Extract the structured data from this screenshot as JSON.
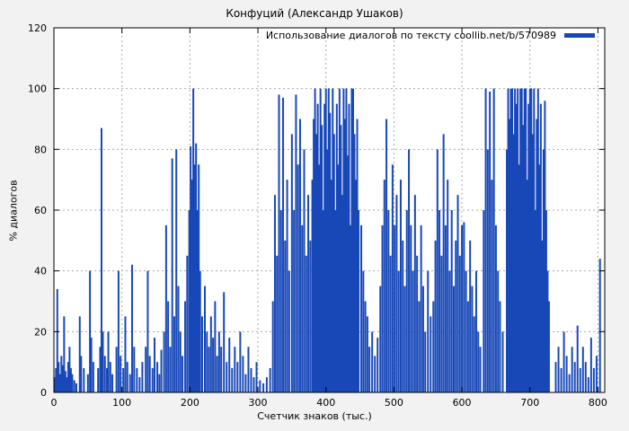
{
  "figure": {
    "title": "Конфуций (Александр Ушаков)",
    "legend_label": "Использование диалогов по тексту coollib.net/b/570989",
    "xlabel": "Счетчик знаков (тыс.)",
    "ylabel": "% диалогов",
    "colors": {
      "series": "#1848b8",
      "background": "#f2f2f2",
      "plot_background": "#ffffff",
      "grid": "#aaaaaa",
      "border": "#000000"
    }
  },
  "chart_data": {
    "type": "bar",
    "style": "impulses",
    "title": "Конфуций (Александр Ушаков)",
    "xlabel": "Счетчик знаков (тыс.)",
    "ylabel": "% диалогов",
    "xlim": [
      0,
      810
    ],
    "ylim": [
      0,
      120
    ],
    "x_ticks": [
      0,
      100,
      200,
      300,
      400,
      500,
      600,
      700,
      800
    ],
    "y_ticks": [
      0,
      20,
      40,
      60,
      80,
      100,
      120
    ],
    "grid": true,
    "legend": {
      "label": "Использование диалогов по тексту coollib.net/b/570989",
      "position": "top-right"
    },
    "points": [
      [
        1,
        5
      ],
      [
        3,
        8
      ],
      [
        5,
        34
      ],
      [
        7,
        10
      ],
      [
        9,
        6
      ],
      [
        11,
        12
      ],
      [
        13,
        9
      ],
      [
        15,
        25
      ],
      [
        17,
        7
      ],
      [
        19,
        5
      ],
      [
        21,
        10
      ],
      [
        23,
        15
      ],
      [
        25,
        8
      ],
      [
        27,
        6
      ],
      [
        30,
        4
      ],
      [
        33,
        3
      ],
      [
        38,
        25
      ],
      [
        40,
        12
      ],
      [
        44,
        8
      ],
      [
        50,
        6
      ],
      [
        53,
        40
      ],
      [
        55,
        18
      ],
      [
        58,
        10
      ],
      [
        65,
        8
      ],
      [
        68,
        15
      ],
      [
        70,
        87
      ],
      [
        72,
        20
      ],
      [
        75,
        12
      ],
      [
        78,
        8
      ],
      [
        80,
        20
      ],
      [
        83,
        10
      ],
      [
        86,
        6
      ],
      [
        92,
        15
      ],
      [
        95,
        40
      ],
      [
        98,
        12
      ],
      [
        102,
        8
      ],
      [
        105,
        25
      ],
      [
        108,
        10
      ],
      [
        112,
        6
      ],
      [
        115,
        42
      ],
      [
        118,
        15
      ],
      [
        122,
        8
      ],
      [
        126,
        5
      ],
      [
        130,
        10
      ],
      [
        135,
        15
      ],
      [
        138,
        40
      ],
      [
        141,
        12
      ],
      [
        145,
        8
      ],
      [
        148,
        18
      ],
      [
        152,
        10
      ],
      [
        155,
        6
      ],
      [
        158,
        14
      ],
      [
        162,
        20
      ],
      [
        165,
        55
      ],
      [
        168,
        30
      ],
      [
        171,
        15
      ],
      [
        174,
        77
      ],
      [
        177,
        25
      ],
      [
        180,
        80
      ],
      [
        183,
        35
      ],
      [
        186,
        20
      ],
      [
        189,
        12
      ],
      [
        193,
        30
      ],
      [
        196,
        45
      ],
      [
        199,
        60
      ],
      [
        201,
        81
      ],
      [
        203,
        70
      ],
      [
        205,
        100
      ],
      [
        207,
        75
      ],
      [
        209,
        82
      ],
      [
        211,
        60
      ],
      [
        213,
        75
      ],
      [
        215,
        40
      ],
      [
        218,
        25
      ],
      [
        222,
        35
      ],
      [
        225,
        20
      ],
      [
        228,
        15
      ],
      [
        231,
        25
      ],
      [
        234,
        18
      ],
      [
        237,
        30
      ],
      [
        240,
        12
      ],
      [
        243,
        20
      ],
      [
        246,
        15
      ],
      [
        250,
        33
      ],
      [
        254,
        10
      ],
      [
        258,
        18
      ],
      [
        262,
        8
      ],
      [
        266,
        15
      ],
      [
        270,
        10
      ],
      [
        274,
        20
      ],
      [
        278,
        12
      ],
      [
        282,
        6
      ],
      [
        286,
        15
      ],
      [
        290,
        8
      ],
      [
        294,
        5
      ],
      [
        298,
        10
      ],
      [
        303,
        4
      ],
      [
        308,
        3
      ],
      [
        313,
        5
      ],
      [
        318,
        8
      ],
      [
        322,
        30
      ],
      [
        325,
        65
      ],
      [
        328,
        45
      ],
      [
        331,
        98
      ],
      [
        334,
        60
      ],
      [
        337,
        97
      ],
      [
        340,
        50
      ],
      [
        343,
        70
      ],
      [
        346,
        40
      ],
      [
        350,
        85
      ],
      [
        353,
        60
      ],
      [
        356,
        98
      ],
      [
        359,
        75
      ],
      [
        362,
        90
      ],
      [
        365,
        55
      ],
      [
        368,
        80
      ],
      [
        371,
        45
      ],
      [
        374,
        65
      ],
      [
        377,
        50
      ],
      [
        380,
        70
      ],
      [
        382,
        90
      ],
      [
        384,
        100
      ],
      [
        386,
        85
      ],
      [
        388,
        95
      ],
      [
        390,
        75
      ],
      [
        392,
        100
      ],
      [
        394,
        88
      ],
      [
        396,
        60
      ],
      [
        398,
        95
      ],
      [
        400,
        100
      ],
      [
        402,
        80
      ],
      [
        404,
        100
      ],
      [
        406,
        92
      ],
      [
        408,
        70
      ],
      [
        410,
        100
      ],
      [
        412,
        85
      ],
      [
        414,
        60
      ],
      [
        416,
        95
      ],
      [
        418,
        75
      ],
      [
        420,
        100
      ],
      [
        422,
        88
      ],
      [
        424,
        65
      ],
      [
        426,
        100
      ],
      [
        428,
        90
      ],
      [
        430,
        100
      ],
      [
        432,
        78
      ],
      [
        434,
        95
      ],
      [
        436,
        55
      ],
      [
        438,
        100
      ],
      [
        440,
        100
      ],
      [
        442,
        85
      ],
      [
        444,
        70
      ],
      [
        446,
        90
      ],
      [
        448,
        60
      ],
      [
        452,
        55
      ],
      [
        455,
        40
      ],
      [
        458,
        30
      ],
      [
        461,
        25
      ],
      [
        464,
        15
      ],
      [
        468,
        20
      ],
      [
        472,
        12
      ],
      [
        476,
        18
      ],
      [
        480,
        35
      ],
      [
        483,
        55
      ],
      [
        486,
        70
      ],
      [
        489,
        90
      ],
      [
        492,
        60
      ],
      [
        495,
        45
      ],
      [
        498,
        75
      ],
      [
        501,
        55
      ],
      [
        504,
        65
      ],
      [
        507,
        40
      ],
      [
        510,
        70
      ],
      [
        513,
        50
      ],
      [
        516,
        35
      ],
      [
        519,
        60
      ],
      [
        522,
        80
      ],
      [
        525,
        55
      ],
      [
        528,
        40
      ],
      [
        531,
        65
      ],
      [
        534,
        45
      ],
      [
        537,
        30
      ],
      [
        540,
        55
      ],
      [
        543,
        35
      ],
      [
        546,
        20
      ],
      [
        550,
        40
      ],
      [
        554,
        25
      ],
      [
        558,
        30
      ],
      [
        561,
        50
      ],
      [
        564,
        80
      ],
      [
        567,
        60
      ],
      [
        570,
        45
      ],
      [
        573,
        85
      ],
      [
        576,
        55
      ],
      [
        579,
        70
      ],
      [
        582,
        40
      ],
      [
        585,
        60
      ],
      [
        588,
        35
      ],
      [
        591,
        50
      ],
      [
        594,
        65
      ],
      [
        597,
        45
      ],
      [
        600,
        55
      ],
      [
        603,
        56
      ],
      [
        606,
        40
      ],
      [
        609,
        30
      ],
      [
        612,
        50
      ],
      [
        615,
        35
      ],
      [
        618,
        25
      ],
      [
        621,
        40
      ],
      [
        624,
        20
      ],
      [
        627,
        15
      ],
      [
        632,
        60
      ],
      [
        635,
        100
      ],
      [
        638,
        80
      ],
      [
        641,
        99
      ],
      [
        644,
        70
      ],
      [
        647,
        100
      ],
      [
        650,
        55
      ],
      [
        653,
        40
      ],
      [
        656,
        30
      ],
      [
        660,
        20
      ],
      [
        666,
        80
      ],
      [
        668,
        100
      ],
      [
        670,
        90
      ],
      [
        672,
        100
      ],
      [
        674,
        100
      ],
      [
        676,
        85
      ],
      [
        678,
        100
      ],
      [
        680,
        95
      ],
      [
        682,
        100
      ],
      [
        684,
        75
      ],
      [
        686,
        100
      ],
      [
        688,
        100
      ],
      [
        690,
        88
      ],
      [
        692,
        100
      ],
      [
        694,
        100
      ],
      [
        696,
        70
      ],
      [
        698,
        95
      ],
      [
        700,
        100
      ],
      [
        702,
        100
      ],
      [
        704,
        85
      ],
      [
        706,
        100
      ],
      [
        708,
        60
      ],
      [
        710,
        90
      ],
      [
        712,
        100
      ],
      [
        714,
        75
      ],
      [
        716,
        95
      ],
      [
        718,
        50
      ],
      [
        720,
        80
      ],
      [
        722,
        96
      ],
      [
        724,
        60
      ],
      [
        726,
        40
      ],
      [
        728,
        30
      ],
      [
        738,
        10
      ],
      [
        742,
        15
      ],
      [
        746,
        8
      ],
      [
        750,
        20
      ],
      [
        754,
        12
      ],
      [
        758,
        6
      ],
      [
        762,
        15
      ],
      [
        766,
        10
      ],
      [
        770,
        22
      ],
      [
        774,
        8
      ],
      [
        778,
        15
      ],
      [
        782,
        10
      ],
      [
        786,
        5
      ],
      [
        790,
        18
      ],
      [
        794,
        8
      ],
      [
        798,
        12
      ],
      [
        803,
        44
      ]
    ]
  }
}
